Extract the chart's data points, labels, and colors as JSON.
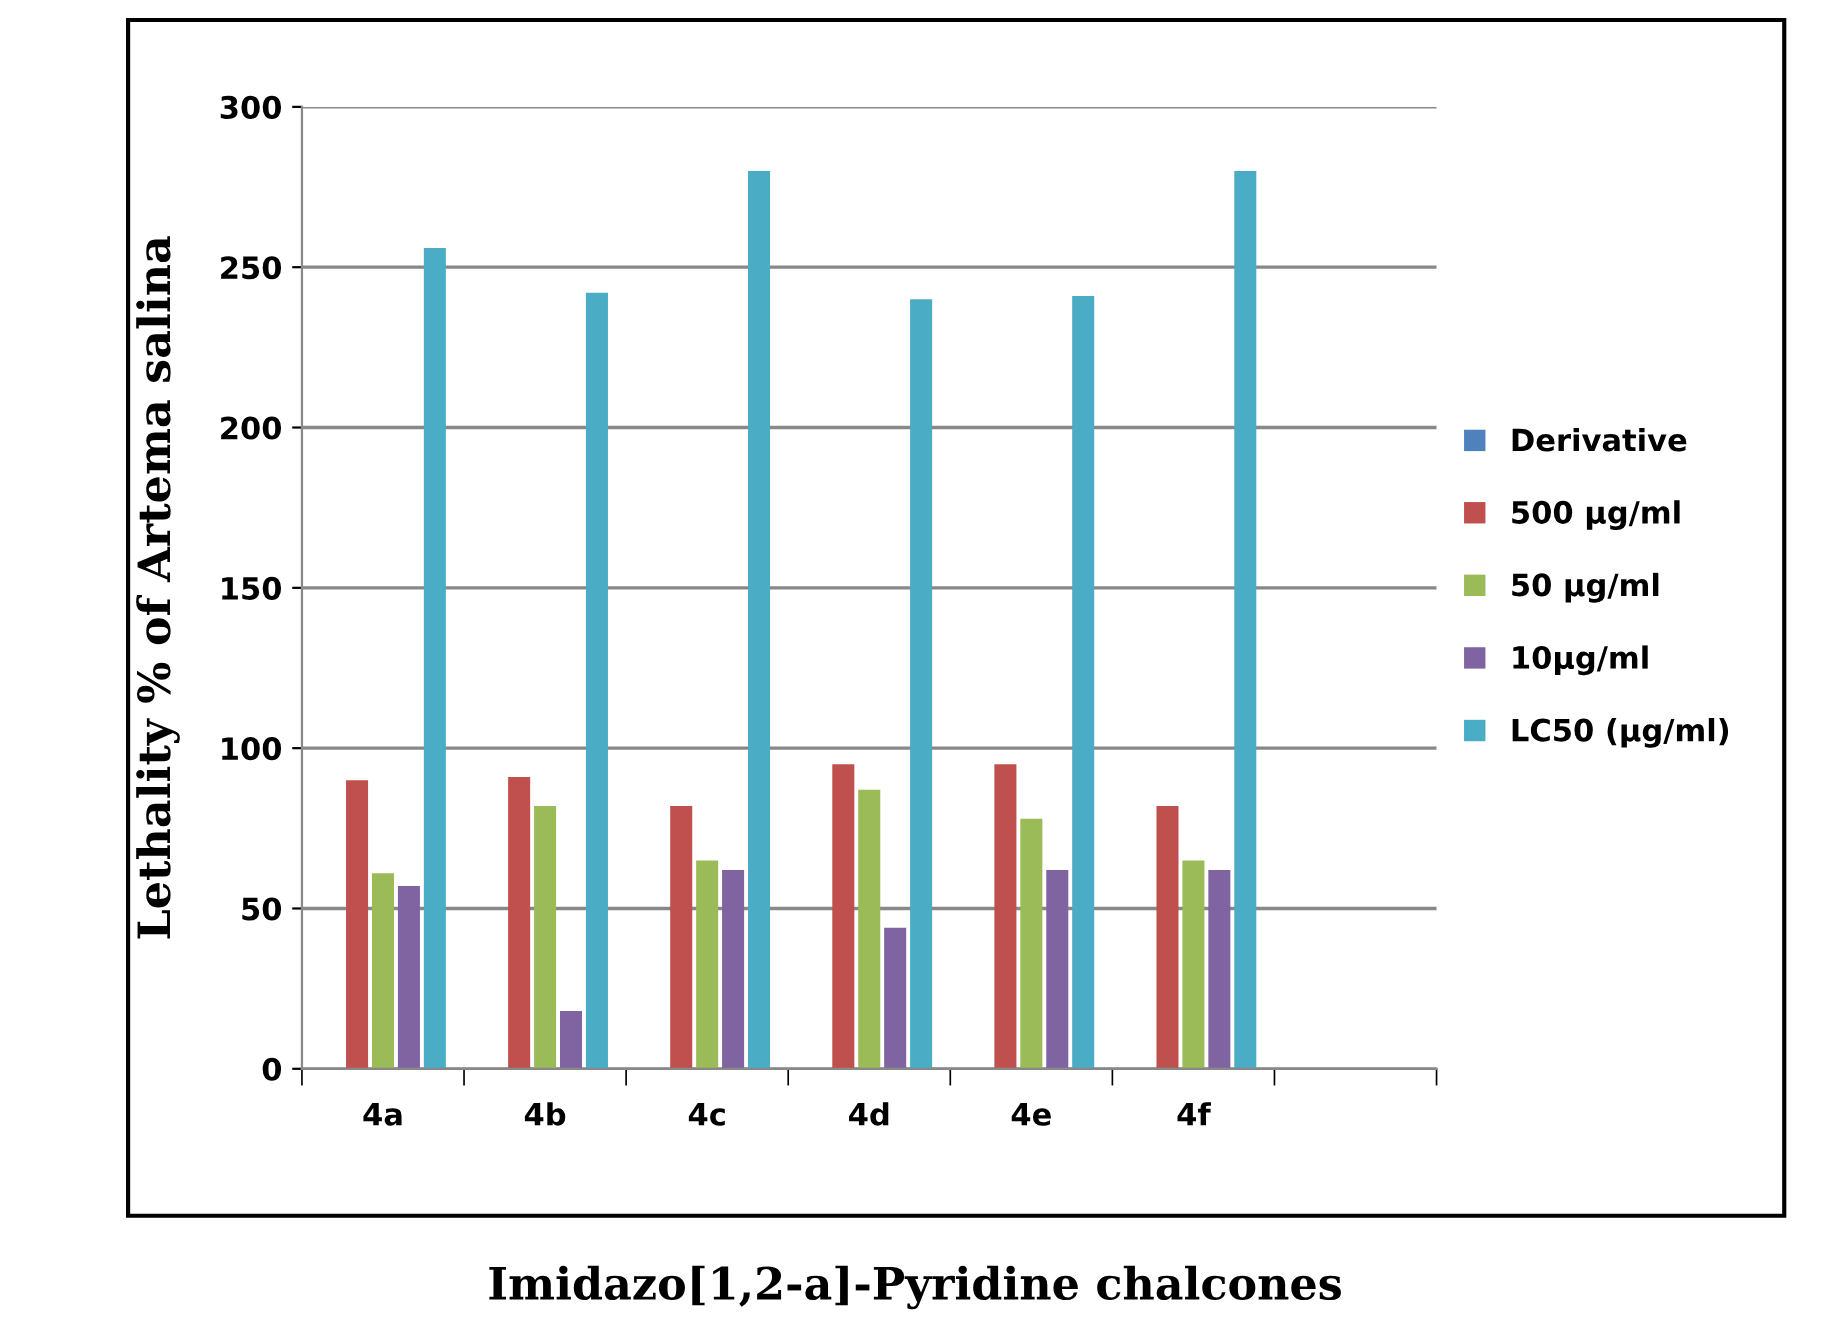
{
  "chart_data": {
    "type": "bar",
    "xlabel": "Imidazo[1,2-a]-Pyridine chalcones",
    "ylabel": "Lethality % of Artema salina",
    "categories": [
      "4a",
      "4b",
      "4c",
      "4d",
      "4e",
      "4f",
      null
    ],
    "series": [
      {
        "name": "Derivative",
        "color": "#4f81bd",
        "values": [
          0,
          0,
          0,
          0,
          0,
          0,
          null
        ]
      },
      {
        "name": "500 µg/ml",
        "color": "#c0504d",
        "values": [
          90,
          91,
          82,
          95,
          95,
          82,
          null
        ]
      },
      {
        "name": "50 µg/ml",
        "color": "#9bbb59",
        "values": [
          61,
          82,
          65,
          87,
          78,
          65,
          null
        ]
      },
      {
        "name": "10µg/ml",
        "color": "#8064a2",
        "values": [
          57,
          18,
          62,
          44,
          62,
          62,
          null
        ]
      },
      {
        "name": "LC50 (µg/ml)",
        "color": "#4bacc6",
        "values": [
          256,
          242,
          280,
          240,
          241,
          280,
          null
        ]
      }
    ],
    "ylim": [
      0,
      300
    ],
    "yticks": [
      0,
      50,
      100,
      150,
      200,
      250,
      300
    ],
    "grid": "y",
    "legend": "right"
  }
}
